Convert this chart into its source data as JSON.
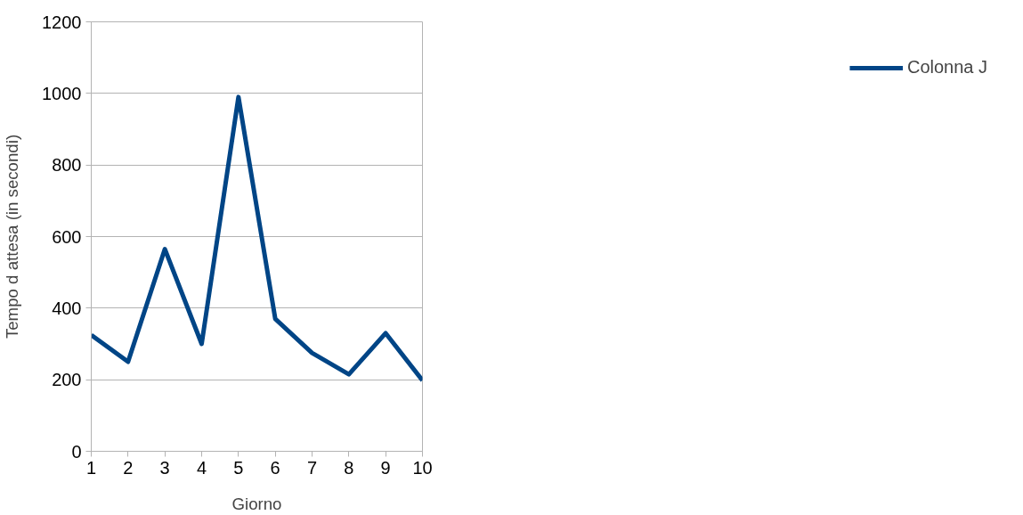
{
  "chart_data": {
    "type": "line",
    "xlabel": "Giorno",
    "ylabel": "Tempo d attesa (in secondi)",
    "x": [
      1,
      2,
      3,
      4,
      5,
      6,
      7,
      8,
      9,
      10
    ],
    "series": [
      {
        "name": "Colonna J",
        "color": "#004586",
        "values": [
          325,
          250,
          565,
          300,
          990,
          370,
          275,
          215,
          330,
          198
        ]
      }
    ],
    "xlim": [
      1,
      10
    ],
    "xticks": [
      1,
      2,
      3,
      4,
      5,
      6,
      7,
      8,
      9,
      10
    ],
    "ylim": [
      0,
      1200
    ],
    "yticks": [
      0,
      200,
      400,
      600,
      800,
      1000,
      1200
    ],
    "grid": "y",
    "legend": "right",
    "marker": "none",
    "line_style": "solid"
  }
}
